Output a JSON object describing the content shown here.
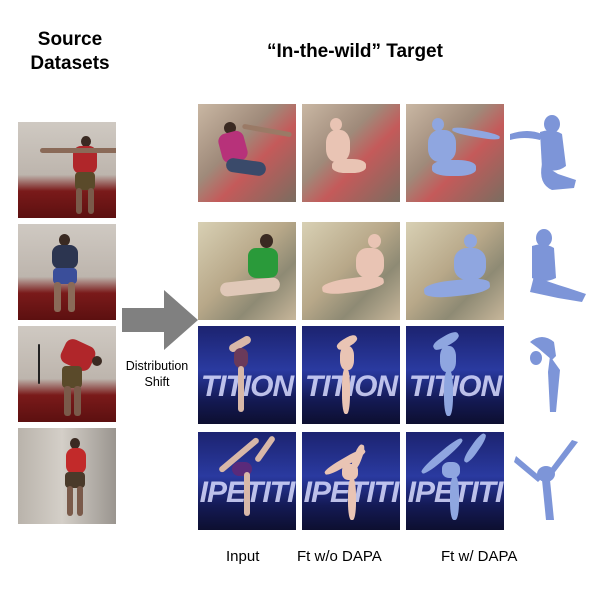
{
  "titles": {
    "source": "Source Datasets",
    "target": "“In-the-wild” Target"
  },
  "arrow_label": "Distribution Shift",
  "column_labels": {
    "input": "Input",
    "without_dapa": "Ft w/o DAPA",
    "with_dapa": "Ft w/ DAPA"
  },
  "stage_text": {
    "row3": "TITION",
    "row4": "IPETITI"
  },
  "colors": {
    "mesh_pink": "#e9c4b4",
    "mesh_blue": "#8fa6e0",
    "side_blue": "#7d95d8",
    "arrow_gray": "#808080"
  }
}
